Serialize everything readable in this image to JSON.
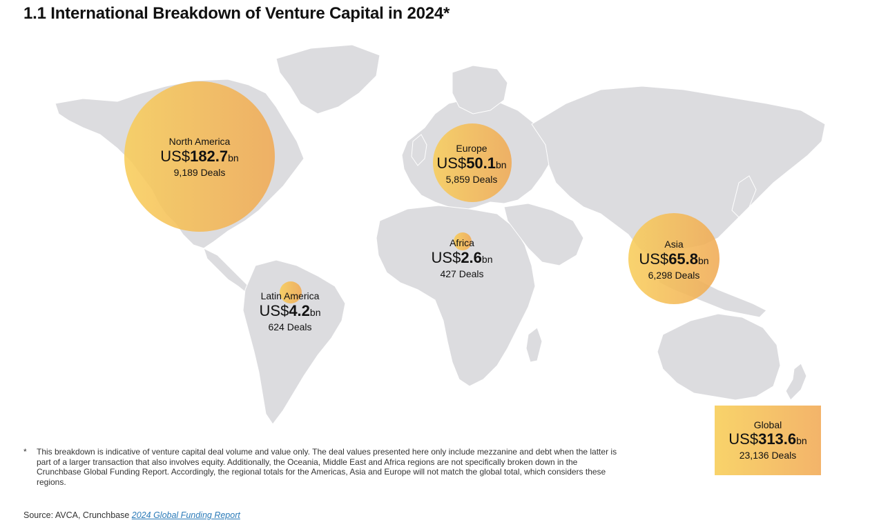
{
  "title": "1.1 International Breakdown of Venture Capital in 2024*",
  "colors": {
    "land": "#dcdcdf",
    "bubble_light": "#f8cd5a",
    "bubble_dark": "#f0aa55"
  },
  "regions": [
    {
      "name": "North America",
      "prefix": "US$",
      "value": "182.7",
      "unit": "bn",
      "deals": "9,189 Deals"
    },
    {
      "name": "Europe",
      "prefix": "US$",
      "value": "50.1",
      "unit": "bn",
      "deals": "5,859 Deals"
    },
    {
      "name": "Africa",
      "prefix": "US$",
      "value": "2.6",
      "unit": "bn",
      "deals": "427 Deals"
    },
    {
      "name": "Asia",
      "prefix": "US$",
      "value": "65.8",
      "unit": "bn",
      "deals": "6,298 Deals"
    },
    {
      "name": "Latin America",
      "prefix": "US$",
      "value": "4.2",
      "unit": "bn",
      "deals": "624 Deals"
    }
  ],
  "global": {
    "name": "Global",
    "prefix": "US$",
    "value": "313.6",
    "unit": "bn",
    "deals": "23,136 Deals"
  },
  "footnote": {
    "marker": "*",
    "text": "This breakdown is indicative of venture capital deal volume and value only. The deal values presented here only include mezzanine and debt when the latter is part of a larger transaction that also involves equity. Additionally, the Oceania, Middle East and Africa regions are not specifically broken down in the Crunchbase Global Funding Report. Accordingly, the regional totals for the Americas, Asia and Europe will not match the global total, which considers these regions."
  },
  "source": {
    "prefix": "Source: AVCA, Crunchbase ",
    "link_text": "2024 Global Funding Report"
  }
}
